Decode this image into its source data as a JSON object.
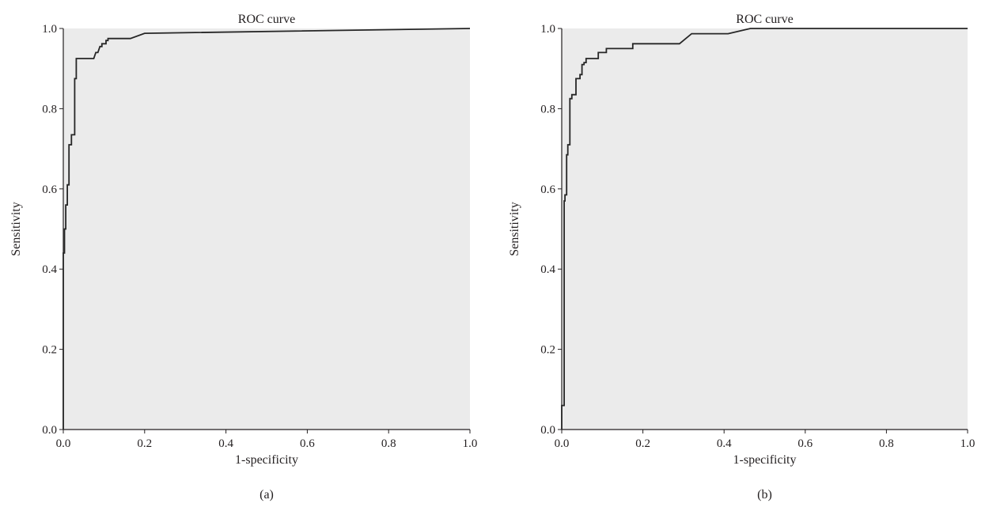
{
  "colors": {
    "plot_background": "#ebebeb",
    "curve": "#262626",
    "axis": "#231f20"
  },
  "chart_data": [
    {
      "type": "line",
      "title": "ROC curve",
      "xlabel": "1-specificity",
      "ylabel": "Sensitivity",
      "caption": "(a)",
      "xlim": [
        0,
        1
      ],
      "ylim": [
        0,
        1
      ],
      "x_ticks": [
        "0.0",
        "0.2",
        "0.4",
        "0.6",
        "0.8",
        "1.0"
      ],
      "y_ticks": [
        "0.0",
        "0.2",
        "0.4",
        "0.6",
        "0.8",
        "1.0"
      ],
      "grid": false,
      "series": [
        {
          "x": [
            0,
            0,
            0.003,
            0.003,
            0.006,
            0.006,
            0.01,
            0.01,
            0.014,
            0.014,
            0.02,
            0.02,
            0.028,
            0.028,
            0.032,
            0.032,
            0.075,
            0.08,
            0.085,
            0.09,
            0.095,
            0.095,
            0.105,
            0.105,
            0.11,
            0.11,
            0.165,
            0.2,
            1.0
          ],
          "y": [
            0,
            0.44,
            0.44,
            0.5,
            0.5,
            0.56,
            0.56,
            0.61,
            0.61,
            0.71,
            0.71,
            0.735,
            0.735,
            0.875,
            0.875,
            0.925,
            0.925,
            0.94,
            0.94,
            0.955,
            0.955,
            0.962,
            0.962,
            0.97,
            0.97,
            0.975,
            0.975,
            0.988,
            1.0
          ]
        }
      ]
    },
    {
      "type": "line",
      "title": "ROC curve",
      "xlabel": "1-specificity",
      "ylabel": "Sensitivity",
      "caption": "(b)",
      "xlim": [
        0,
        1
      ],
      "ylim": [
        0,
        1
      ],
      "x_ticks": [
        "0.0",
        "0.2",
        "0.4",
        "0.6",
        "0.8",
        "1.0"
      ],
      "y_ticks": [
        "0.0",
        "0.2",
        "0.4",
        "0.6",
        "0.8",
        "1.0"
      ],
      "grid": false,
      "series": [
        {
          "x": [
            0,
            0,
            0.006,
            0.006,
            0.008,
            0.008,
            0.012,
            0.012,
            0.015,
            0.015,
            0.02,
            0.02,
            0.025,
            0.025,
            0.035,
            0.035,
            0.045,
            0.045,
            0.05,
            0.05,
            0.055,
            0.055,
            0.06,
            0.06,
            0.09,
            0.09,
            0.11,
            0.11,
            0.175,
            0.175,
            0.29,
            0.32,
            0.41,
            0.465,
            0.475,
            1.0
          ],
          "y": [
            0,
            0.06,
            0.06,
            0.57,
            0.57,
            0.585,
            0.585,
            0.685,
            0.685,
            0.71,
            0.71,
            0.825,
            0.825,
            0.835,
            0.835,
            0.875,
            0.875,
            0.885,
            0.885,
            0.91,
            0.91,
            0.915,
            0.915,
            0.925,
            0.925,
            0.94,
            0.94,
            0.95,
            0.95,
            0.962,
            0.962,
            0.987,
            0.987,
            1.0,
            1.0,
            1.0
          ]
        }
      ]
    }
  ]
}
